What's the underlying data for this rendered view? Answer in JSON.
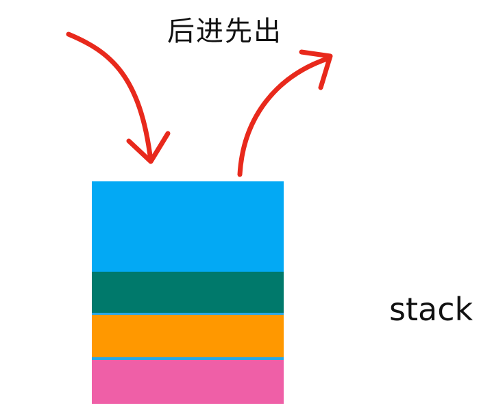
{
  "caption": "后进先出",
  "label": "stack",
  "colors": {
    "top_layer": "#03a9f4",
    "layer_2": "#00796b",
    "layer_3": "#ff9800",
    "layer_4": "#ef5fa7",
    "separator": "#2aa7e8",
    "arrow": "#e8291c",
    "text": "#111111"
  },
  "icons": {
    "push": "curved-arrow-down-icon",
    "pop": "curved-arrow-up-icon"
  }
}
